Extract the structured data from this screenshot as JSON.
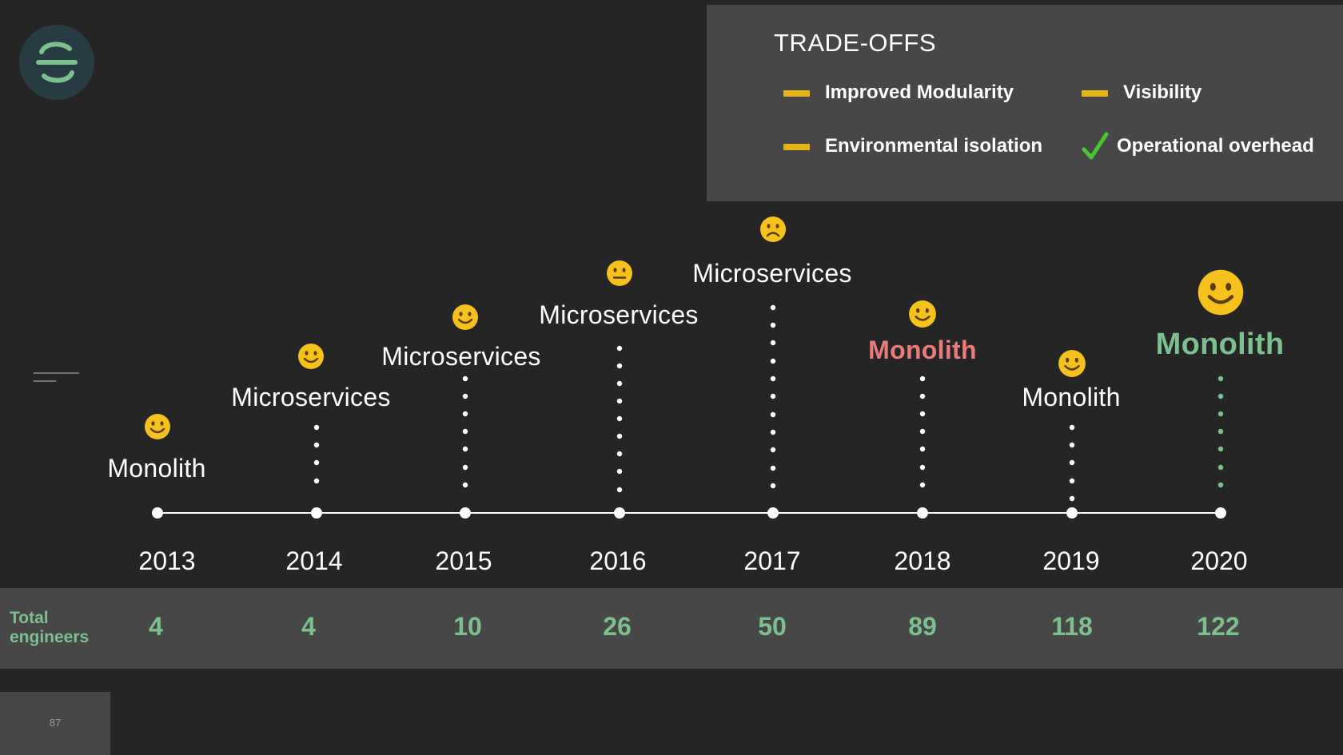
{
  "tradeoffs": {
    "title": "TRADE-OFFS",
    "items": [
      {
        "label": "Improved Modularity",
        "status": "neutral",
        "icon": "dash-icon"
      },
      {
        "label": "Visibility",
        "status": "neutral",
        "icon": "dash-icon"
      },
      {
        "label": "Environmental isolation",
        "status": "neutral",
        "icon": "dash-icon"
      },
      {
        "label": "Operational overhead",
        "status": "positive",
        "icon": "checkmark-icon"
      }
    ]
  },
  "timeline": {
    "milestones": [
      {
        "year": "2013",
        "architecture": "Monolith",
        "mood": "happy",
        "engineers": "4"
      },
      {
        "year": "2014",
        "architecture": "Microservices",
        "mood": "happy",
        "engineers": "4"
      },
      {
        "year": "2015",
        "architecture": "Microservices",
        "mood": "happy",
        "engineers": "10"
      },
      {
        "year": "2016",
        "architecture": "Microservices",
        "mood": "neutral",
        "engineers": "26"
      },
      {
        "year": "2017",
        "architecture": "Microservices",
        "mood": "sad",
        "engineers": "50"
      },
      {
        "year": "2018",
        "architecture": "Monolith",
        "mood": "happy",
        "engineers": "89",
        "highlight": "red"
      },
      {
        "year": "2019",
        "architecture": "Monolith",
        "mood": "happy",
        "engineers": "118"
      },
      {
        "year": "2020",
        "architecture": "Monolith",
        "mood": "happy",
        "engineers": "122",
        "highlight": "green"
      }
    ]
  },
  "engineers_row": {
    "label_line1": "Total",
    "label_line2": "engineers"
  },
  "footer": {
    "page_number": "87"
  },
  "colors": {
    "background": "#252525",
    "panel": "#474747",
    "accent_green": "#7cc08f",
    "accent_red": "#ea7b7b",
    "dash_yellow": "#e4b419",
    "check_green": "#4cc431",
    "emoji_yellow": "#f5c11c"
  }
}
